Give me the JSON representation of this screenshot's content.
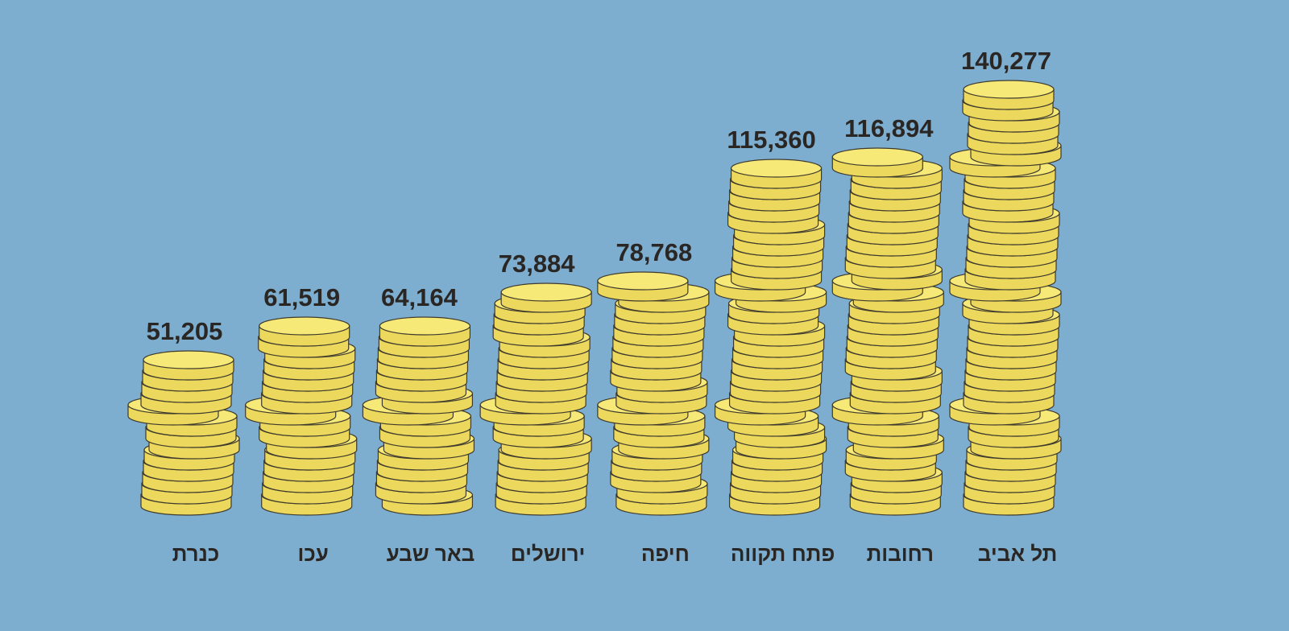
{
  "chart_data": {
    "type": "bar",
    "style": "coin-stacks",
    "title": "",
    "xlabel": "",
    "ylabel": "",
    "ylim": [
      0,
      150000
    ],
    "categories": [
      "כנרת",
      "עכו",
      "באר שבע",
      "ירושלים",
      "חיפה",
      "פתח תקווה",
      "רחובות",
      "תל אביב"
    ],
    "values": [
      51205,
      61519,
      64164,
      73884,
      78768,
      115360,
      116894,
      140277
    ],
    "value_labels": [
      "51,205",
      "61,519",
      "64,164",
      "73,884",
      "78,768",
      "115,360",
      "116,894",
      "140,277"
    ]
  },
  "colors": {
    "background": "#7daed0",
    "coin_face": "#f7e977",
    "coin_side": "#ecd85c",
    "coin_outline": "#3e3a2e",
    "text": "#2a2623"
  }
}
